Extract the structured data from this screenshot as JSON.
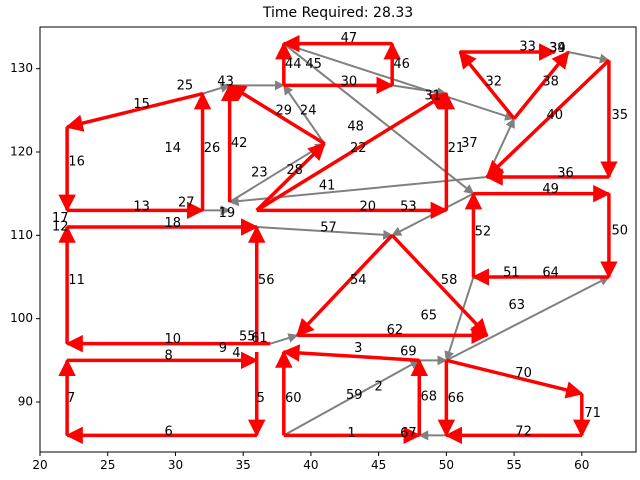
{
  "chart_data": {
    "type": "line",
    "title": "Time Required: 28.33",
    "xlabel": "",
    "ylabel": "",
    "xlim": [
      20,
      64
    ],
    "ylim": [
      84,
      135
    ],
    "x_ticks": [
      20,
      25,
      30,
      35,
      40,
      45,
      50,
      55,
      60
    ],
    "y_ticks": [
      90,
      100,
      110,
      120,
      130
    ],
    "grid": false,
    "colors": {
      "route": "#ff0000",
      "network": "#808080"
    },
    "edges": [
      {
        "label": "1",
        "from": [
          38,
          86
        ],
        "to": [
          48,
          86
        ],
        "color": "red",
        "lx": 43.0,
        "ly": 86.2
      },
      {
        "label": "2",
        "from": [
          38,
          86
        ],
        "to": [
          48,
          95
        ],
        "color": "gray",
        "lx": 45.0,
        "ly": 91.8
      },
      {
        "label": "3",
        "from": [
          48,
          95
        ],
        "to": [
          38,
          96
        ],
        "color": "red",
        "lx": 43.5,
        "ly": 96.4
      },
      {
        "label": "4",
        "from": [
          36,
          96
        ],
        "to": [
          36,
          96
        ],
        "color": "none",
        "lx": 34.5,
        "ly": 95.8
      },
      {
        "label": "5",
        "from": [
          36,
          96
        ],
        "to": [
          36,
          86
        ],
        "color": "red",
        "lx": 36.3,
        "ly": 90.4
      },
      {
        "label": "6",
        "from": [
          36,
          86
        ],
        "to": [
          22,
          86
        ],
        "color": "red",
        "lx": 29.5,
        "ly": 86.4
      },
      {
        "label": "7",
        "from": [
          22,
          86
        ],
        "to": [
          22,
          95
        ],
        "color": "red",
        "lx": 22.3,
        "ly": 90.4
      },
      {
        "label": "8",
        "from": [
          22,
          95
        ],
        "to": [
          36,
          95
        ],
        "color": "red",
        "lx": 29.5,
        "ly": 95.5
      },
      {
        "label": "9",
        "from": [
          36,
          96
        ],
        "to": [
          36,
          96
        ],
        "color": "none",
        "lx": 33.5,
        "ly": 96.4
      },
      {
        "label": "10",
        "from": [
          37,
          97
        ],
        "to": [
          22,
          97
        ],
        "color": "red",
        "lx": 29.8,
        "ly": 97.5
      },
      {
        "label": "11",
        "from": [
          22,
          97
        ],
        "to": [
          22,
          111
        ],
        "color": "red",
        "lx": 22.7,
        "ly": 104.6
      },
      {
        "label": "12",
        "from": [
          22,
          111
        ],
        "to": [
          22,
          111
        ],
        "color": "none",
        "lx": 21.5,
        "ly": 111.0
      },
      {
        "label": "13",
        "from": [
          22,
          113
        ],
        "to": [
          32,
          113
        ],
        "color": "red",
        "lx": 27.5,
        "ly": 113.4
      },
      {
        "label": "14",
        "from": [
          32,
          113
        ],
        "to": [
          32,
          127
        ],
        "color": "gray",
        "lx": 29.8,
        "ly": 120.4
      },
      {
        "label": "15",
        "from": [
          32,
          127
        ],
        "to": [
          22,
          123
        ],
        "color": "red",
        "lx": 27.5,
        "ly": 125.7
      },
      {
        "label": "16",
        "from": [
          22,
          123
        ],
        "to": [
          22,
          113
        ],
        "color": "red",
        "lx": 22.7,
        "ly": 118.8
      },
      {
        "label": "17",
        "from": [
          22,
          113
        ],
        "to": [
          22,
          111
        ],
        "color": "none",
        "lx": 21.5,
        "ly": 112.0
      },
      {
        "label": "18",
        "from": [
          22,
          111
        ],
        "to": [
          36,
          111
        ],
        "color": "red",
        "lx": 29.8,
        "ly": 111.4
      },
      {
        "label": "19",
        "from": [
          32,
          113
        ],
        "to": [
          34,
          113
        ],
        "color": "gray",
        "lx": 33.8,
        "ly": 112.6
      },
      {
        "label": "20",
        "from": [
          36,
          113
        ],
        "to": [
          50,
          113
        ],
        "color": "red",
        "lx": 44.2,
        "ly": 113.4
      },
      {
        "label": "21",
        "from": [
          50,
          113
        ],
        "to": [
          50,
          127
        ],
        "color": "red",
        "lx": 50.7,
        "ly": 120.4
      },
      {
        "label": "22",
        "from": [
          36,
          113
        ],
        "to": [
          50,
          127
        ],
        "color": "red",
        "lx": 43.5,
        "ly": 120.4
      },
      {
        "label": "23",
        "from": [
          34,
          114
        ],
        "to": [
          41,
          121
        ],
        "color": "gray",
        "lx": 36.2,
        "ly": 117.5
      },
      {
        "label": "24",
        "from": [
          41,
          121
        ],
        "to": [
          38,
          128
        ],
        "color": "gray",
        "lx": 39.8,
        "ly": 124.9
      },
      {
        "label": "25",
        "from": [
          32,
          127
        ],
        "to": [
          34,
          128
        ],
        "color": "gray",
        "lx": 30.7,
        "ly": 127.9
      },
      {
        "label": "26",
        "from": [
          32,
          113
        ],
        "to": [
          32,
          127
        ],
        "color": "red",
        "lx": 32.7,
        "ly": 120.4
      },
      {
        "label": "27",
        "from": [
          34,
          113
        ],
        "to": [
          32,
          113
        ],
        "color": "none",
        "lx": 30.8,
        "ly": 113.9
      },
      {
        "label": "28",
        "from": [
          36,
          113
        ],
        "to": [
          41,
          121
        ],
        "color": "red",
        "lx": 38.8,
        "ly": 117.8
      },
      {
        "label": "29",
        "from": [
          41,
          121
        ],
        "to": [
          34,
          128
        ],
        "color": "red",
        "lx": 38.0,
        "ly": 124.9
      },
      {
        "label": "30",
        "from": [
          38,
          128
        ],
        "to": [
          46,
          128
        ],
        "color": "red",
        "lx": 42.8,
        "ly": 128.4
      },
      {
        "label": "31",
        "from": [
          46,
          128
        ],
        "to": [
          50,
          127
        ],
        "color": "gray",
        "lx": 49.0,
        "ly": 126.7
      },
      {
        "label": "32",
        "from": [
          55,
          124
        ],
        "to": [
          51,
          132
        ],
        "color": "red",
        "lx": 53.5,
        "ly": 128.4
      },
      {
        "label": "33",
        "from": [
          51,
          132
        ],
        "to": [
          58,
          132
        ],
        "color": "red",
        "lx": 56.0,
        "ly": 132.6
      },
      {
        "label": "34",
        "from": [
          58,
          132
        ],
        "to": [
          58,
          132
        ],
        "color": "none",
        "lx": 58.2,
        "ly": 132.4
      },
      {
        "label": "35",
        "from": [
          62,
          131
        ],
        "to": [
          62,
          117
        ],
        "color": "red",
        "lx": 62.8,
        "ly": 124.4
      },
      {
        "label": "36",
        "from": [
          62,
          117
        ],
        "to": [
          53,
          117
        ],
        "color": "red",
        "lx": 58.8,
        "ly": 117.4
      },
      {
        "label": "37",
        "from": [
          53,
          117
        ],
        "to": [
          55,
          124
        ],
        "color": "gray",
        "lx": 51.7,
        "ly": 121.0
      },
      {
        "label": "38",
        "from": [
          55,
          124
        ],
        "to": [
          59,
          132
        ],
        "color": "red",
        "lx": 57.7,
        "ly": 128.4
      },
      {
        "label": "39",
        "from": [
          59,
          132
        ],
        "to": [
          62,
          131
        ],
        "color": "gray",
        "lx": 58.2,
        "ly": 132.4
      },
      {
        "label": "40",
        "from": [
          62,
          131
        ],
        "to": [
          53,
          117
        ],
        "color": "red",
        "lx": 58.0,
        "ly": 124.4
      },
      {
        "label": "41",
        "from": [
          53,
          117
        ],
        "to": [
          34,
          114
        ],
        "color": "gray",
        "lx": 41.2,
        "ly": 115.9
      },
      {
        "label": "42",
        "from": [
          34,
          114
        ],
        "to": [
          34,
          128
        ],
        "color": "red",
        "lx": 34.7,
        "ly": 121.0
      },
      {
        "label": "43",
        "from": [
          34,
          128
        ],
        "to": [
          38,
          128
        ],
        "color": "gray",
        "lx": 33.7,
        "ly": 128.4
      },
      {
        "label": "44",
        "from": [
          38,
          128
        ],
        "to": [
          38,
          133
        ],
        "color": "red",
        "lx": 38.7,
        "ly": 130.5
      },
      {
        "label": "45",
        "from": [
          38,
          133
        ],
        "to": [
          55,
          124
        ],
        "color": "gray",
        "lx": 40.2,
        "ly": 130.5
      },
      {
        "label": "46",
        "from": [
          46,
          128
        ],
        "to": [
          46,
          133
        ],
        "color": "red",
        "lx": 46.7,
        "ly": 130.5
      },
      {
        "label": "47",
        "from": [
          46,
          133
        ],
        "to": [
          38,
          133
        ],
        "color": "red",
        "lx": 42.8,
        "ly": 133.6
      },
      {
        "label": "48",
        "from": [
          38,
          133
        ],
        "to": [
          52,
          115
        ],
        "color": "gray",
        "lx": 43.3,
        "ly": 123.0
      },
      {
        "label": "49",
        "from": [
          52,
          115
        ],
        "to": [
          62,
          115
        ],
        "color": "red",
        "lx": 57.7,
        "ly": 115.5
      },
      {
        "label": "50",
        "from": [
          62,
          115
        ],
        "to": [
          62,
          105
        ],
        "color": "red",
        "lx": 62.8,
        "ly": 110.5
      },
      {
        "label": "51",
        "from": [
          62,
          105
        ],
        "to": [
          52,
          105
        ],
        "color": "gray",
        "lx": 54.8,
        "ly": 105.5
      },
      {
        "label": "52",
        "from": [
          52,
          105
        ],
        "to": [
          52,
          115
        ],
        "color": "red",
        "lx": 52.7,
        "ly": 110.4
      },
      {
        "label": "53",
        "from": [
          52,
          115
        ],
        "to": [
          46,
          110
        ],
        "color": "gray",
        "lx": 47.2,
        "ly": 113.4
      },
      {
        "label": "54",
        "from": [
          46,
          110
        ],
        "to": [
          39,
          98
        ],
        "color": "red",
        "lx": 43.5,
        "ly": 104.6
      },
      {
        "label": "55",
        "from": [
          36,
          96
        ],
        "to": [
          36,
          96
        ],
        "color": "none",
        "lx": 35.3,
        "ly": 97.8
      },
      {
        "label": "56",
        "from": [
          36,
          97
        ],
        "to": [
          36,
          111
        ],
        "color": "red",
        "lx": 36.7,
        "ly": 104.6
      },
      {
        "label": "57",
        "from": [
          36,
          111
        ],
        "to": [
          46,
          110
        ],
        "color": "gray",
        "lx": 41.3,
        "ly": 110.9
      },
      {
        "label": "58",
        "from": [
          46,
          110
        ],
        "to": [
          53,
          98
        ],
        "color": "red",
        "lx": 50.2,
        "ly": 104.6
      },
      {
        "label": "59",
        "from": [
          38,
          86
        ],
        "to": [
          48,
          95
        ],
        "color": "none",
        "lx": 43.2,
        "ly": 90.8
      },
      {
        "label": "60",
        "from": [
          38,
          86
        ],
        "to": [
          38,
          96
        ],
        "color": "red",
        "lx": 38.7,
        "ly": 90.4
      },
      {
        "label": "61",
        "from": [
          37,
          97
        ],
        "to": [
          39,
          98
        ],
        "color": "gray",
        "lx": 36.2,
        "ly": 97.6
      },
      {
        "label": "62",
        "from": [
          39,
          98
        ],
        "to": [
          53,
          98
        ],
        "color": "red",
        "lx": 46.2,
        "ly": 98.6
      },
      {
        "label": "63",
        "from": [
          50,
          95
        ],
        "to": [
          62,
          105
        ],
        "color": "gray",
        "lx": 55.2,
        "ly": 101.6
      },
      {
        "label": "64",
        "from": [
          62,
          105
        ],
        "to": [
          52,
          105
        ],
        "color": "red",
        "lx": 57.7,
        "ly": 105.5
      },
      {
        "label": "65",
        "from": [
          52,
          105
        ],
        "to": [
          50,
          95
        ],
        "color": "gray",
        "lx": 48.7,
        "ly": 100.3
      },
      {
        "label": "66",
        "from": [
          50,
          95
        ],
        "to": [
          50,
          86
        ],
        "color": "red",
        "lx": 50.7,
        "ly": 90.4
      },
      {
        "label": "67",
        "from": [
          50,
          86
        ],
        "to": [
          48,
          86
        ],
        "color": "gray",
        "lx": 47.2,
        "ly": 86.2
      },
      {
        "label": "68",
        "from": [
          48,
          86
        ],
        "to": [
          48,
          95
        ],
        "color": "red",
        "lx": 48.7,
        "ly": 90.6
      },
      {
        "label": "69",
        "from": [
          48,
          95
        ],
        "to": [
          50,
          95
        ],
        "color": "gray",
        "lx": 47.2,
        "ly": 96.0
      },
      {
        "label": "70",
        "from": [
          50,
          95
        ],
        "to": [
          60,
          91
        ],
        "color": "red",
        "lx": 55.7,
        "ly": 93.4
      },
      {
        "label": "71",
        "from": [
          60,
          91
        ],
        "to": [
          60,
          86
        ],
        "color": "red",
        "lx": 60.8,
        "ly": 88.6
      },
      {
        "label": "72",
        "from": [
          60,
          86
        ],
        "to": [
          50,
          86
        ],
        "color": "red",
        "lx": 55.7,
        "ly": 86.4
      }
    ]
  }
}
